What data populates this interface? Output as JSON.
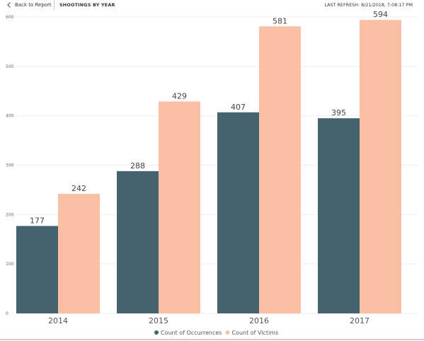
{
  "header": {
    "back_label": "Back to Report",
    "page_title": "SHOOTINGS BY YEAR",
    "refresh_label": "LAST REFRESH:",
    "refresh_value": "8/21/2018, 7:08:17 PM"
  },
  "colors": {
    "occurrences": "#44636f",
    "victims": "#fbc0a3"
  },
  "chart_data": {
    "type": "bar",
    "title": "",
    "xlabel": "",
    "ylabel": "",
    "categories": [
      "2014",
      "2015",
      "2016",
      "2017"
    ],
    "ylim": [
      0,
      600
    ],
    "yticks": [
      0,
      100,
      200,
      300,
      400,
      500,
      600
    ],
    "grid": true,
    "legend": "bottom-center",
    "series": [
      {
        "name": "Count of Occurrences",
        "values": [
          177,
          288,
          407,
          395
        ]
      },
      {
        "name": "Count of Victims",
        "values": [
          242,
          429,
          581,
          594
        ]
      }
    ]
  }
}
